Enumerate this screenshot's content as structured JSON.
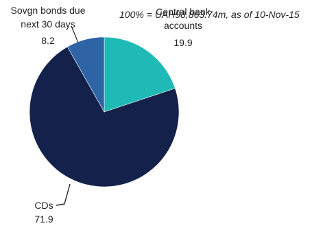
{
  "chart_data": {
    "type": "pie",
    "note": "100% = UAH98,863.74m,  as of 10-Nov-15",
    "slices": [
      {
        "label": "Central bank accounts",
        "label_lines": [
          "Central bank",
          "accounts"
        ],
        "value": 19.9,
        "value_label": "19.9",
        "color": "#1fbab5"
      },
      {
        "label": "CDs",
        "label_lines": [
          "CDs"
        ],
        "value": 71.9,
        "value_label": "71.9",
        "color": "#14214a"
      },
      {
        "label": "Sovgn bonds due next 30 days",
        "label_lines": [
          "Sovgn bonds due",
          "next 30 days"
        ],
        "value": 8.2,
        "value_label": "8.2",
        "color": "#2e63a5"
      }
    ],
    "start_angle_deg": 0,
    "direction": "clockwise"
  }
}
